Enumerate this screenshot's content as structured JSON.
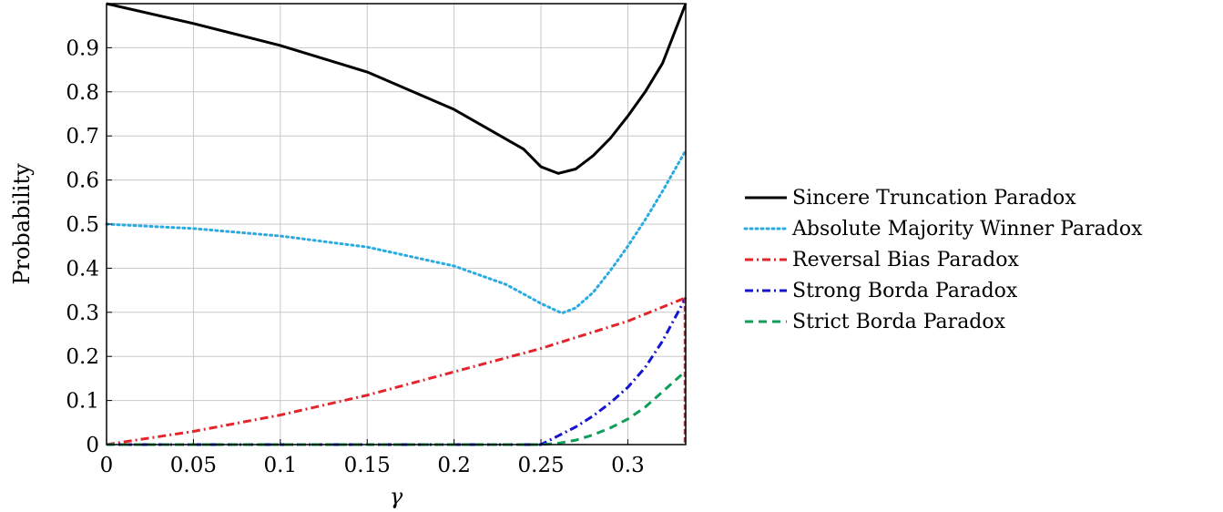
{
  "chart_data": {
    "type": "line",
    "title": "",
    "xlabel": "γ",
    "ylabel": "Probability",
    "xlim": [
      0,
      0.3333
    ],
    "ylim": [
      0,
      1
    ],
    "grid": true,
    "legend_position": "right-outside",
    "xticks": [
      0,
      0.05,
      0.1,
      0.15,
      0.2,
      0.25,
      0.3
    ],
    "xtick_labels": [
      "0",
      "0.05",
      "0.1",
      "0.15",
      "0.2",
      "0.25",
      "0.3"
    ],
    "yticks": [
      0,
      0.1,
      0.2,
      0.3,
      0.4,
      0.5,
      0.6,
      0.7,
      0.8,
      0.9
    ],
    "ytick_labels": [
      "0",
      "0.1",
      "0.2",
      "0.3",
      "0.4",
      "0.5",
      "0.6",
      "0.7",
      "0.8",
      "0.9"
    ],
    "series": [
      {
        "name": "Sincere Truncation Paradox",
        "color": "#000000",
        "dash": "solid",
        "x": [
          0,
          0.05,
          0.1,
          0.15,
          0.2,
          0.24,
          0.25,
          0.26,
          0.27,
          0.28,
          0.29,
          0.3,
          0.31,
          0.32,
          0.3333
        ],
        "y": [
          1.0,
          0.955,
          0.905,
          0.845,
          0.76,
          0.67,
          0.63,
          0.615,
          0.625,
          0.655,
          0.695,
          0.745,
          0.8,
          0.865,
          1.0
        ]
      },
      {
        "name": "Absolute Majority Winner Paradox",
        "color": "#29ABE2",
        "dash": "dotted",
        "x": [
          0,
          0.05,
          0.1,
          0.15,
          0.2,
          0.23,
          0.25,
          0.262,
          0.27,
          0.28,
          0.29,
          0.3,
          0.31,
          0.32,
          0.3333
        ],
        "y": [
          0.5,
          0.49,
          0.473,
          0.448,
          0.405,
          0.363,
          0.32,
          0.298,
          0.31,
          0.345,
          0.395,
          0.45,
          0.51,
          0.575,
          0.667
        ]
      },
      {
        "name": "Reversal Bias Paradox",
        "color": "#E3242B",
        "dash": "dashdot",
        "x": [
          0,
          0.05,
          0.1,
          0.15,
          0.2,
          0.25,
          0.3,
          0.3333
        ],
        "y": [
          0.0,
          0.03,
          0.067,
          0.112,
          0.165,
          0.218,
          0.28,
          0.333
        ]
      },
      {
        "name": "Strong Borda Paradox",
        "color": "#1515D1",
        "dash": "dashdot",
        "x": [
          0,
          0.05,
          0.1,
          0.15,
          0.2,
          0.25,
          0.26,
          0.27,
          0.28,
          0.29,
          0.3,
          0.31,
          0.32,
          0.3333
        ],
        "y": [
          0,
          0,
          0,
          0,
          0,
          0,
          0.02,
          0.04,
          0.065,
          0.095,
          0.13,
          0.175,
          0.235,
          0.333
        ]
      },
      {
        "name": "Strict Borda Paradox",
        "color": "#0F9D58",
        "dash": "dashed",
        "x": [
          0,
          0.05,
          0.1,
          0.15,
          0.2,
          0.25,
          0.26,
          0.27,
          0.28,
          0.29,
          0.3,
          0.31,
          0.32,
          0.3333
        ],
        "y": [
          0,
          0,
          0,
          0,
          0,
          0,
          0.003,
          0.01,
          0.022,
          0.038,
          0.058,
          0.085,
          0.12,
          0.167
        ]
      }
    ]
  }
}
